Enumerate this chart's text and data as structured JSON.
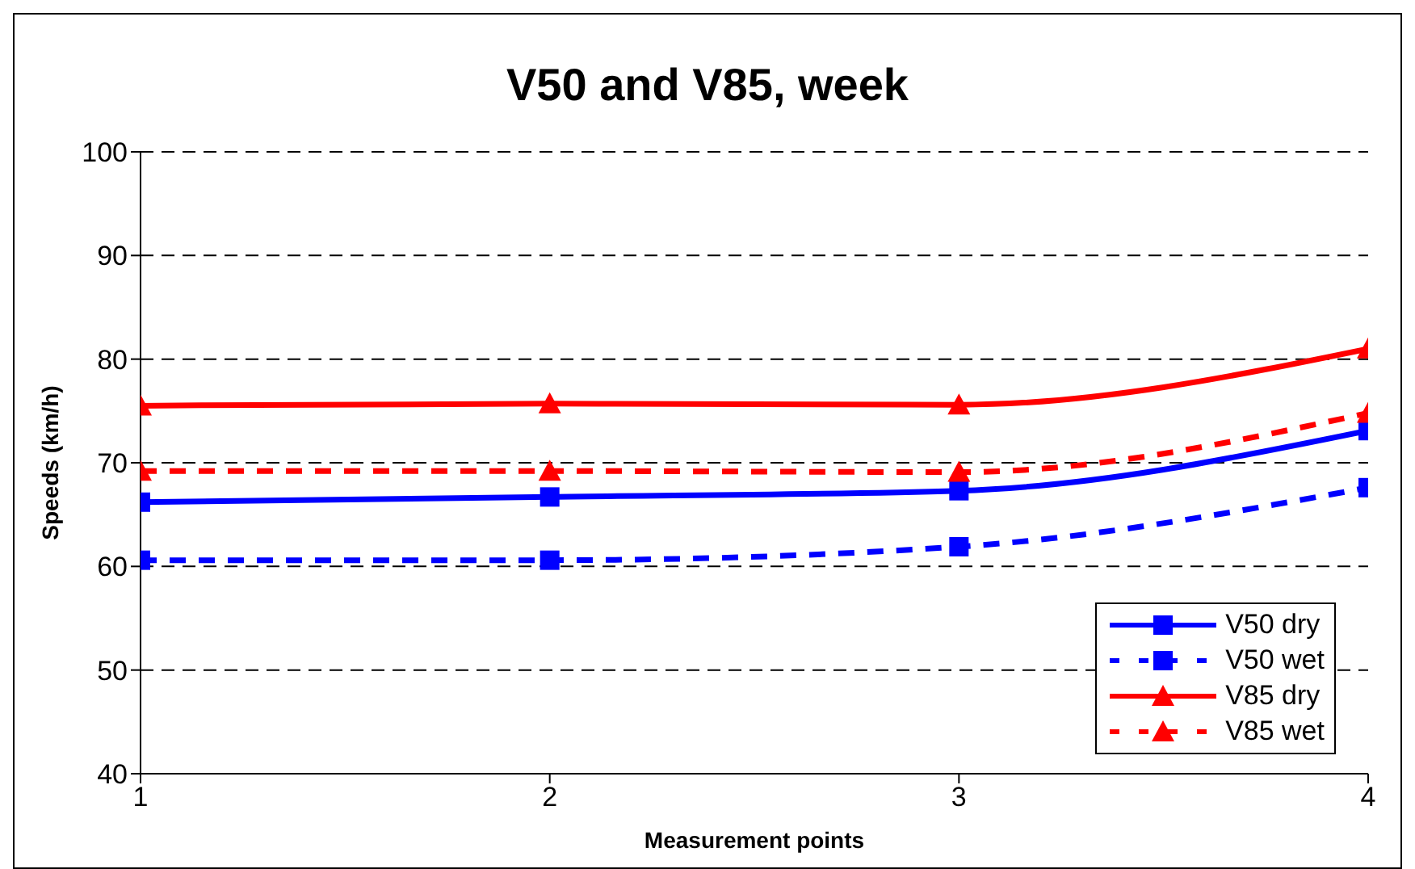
{
  "chart_data": {
    "type": "line",
    "title": "V50 and V85, week",
    "xlabel": "Measurement points",
    "ylabel": "Speeds (km/h)",
    "x": [
      1,
      2,
      3,
      4
    ],
    "xlim": [
      1,
      4
    ],
    "xticks": [
      1,
      2,
      3,
      4
    ],
    "ylim": [
      40,
      100
    ],
    "yticks": [
      40,
      50,
      60,
      70,
      80,
      90,
      100
    ],
    "grid": "y",
    "legend": "bottom right",
    "series": [
      {
        "name": "V50 dry",
        "color": "#0000ff",
        "marker": "square",
        "line_style": "solid",
        "values": [
          66.2,
          66.7,
          67.3,
          73.1
        ]
      },
      {
        "name": "V50 wet",
        "color": "#0000ff",
        "marker": "square",
        "line_style": "dashed",
        "values": [
          60.6,
          60.6,
          61.9,
          67.6
        ]
      },
      {
        "name": "V85 dry",
        "color": "#ff0000",
        "marker": "triangle",
        "line_style": "solid",
        "values": [
          75.5,
          75.7,
          75.6,
          81.0
        ]
      },
      {
        "name": "V85 wet",
        "color": "#ff0000",
        "marker": "triangle",
        "line_style": "dashed",
        "values": [
          69.2,
          69.2,
          69.1,
          74.8
        ]
      }
    ]
  }
}
